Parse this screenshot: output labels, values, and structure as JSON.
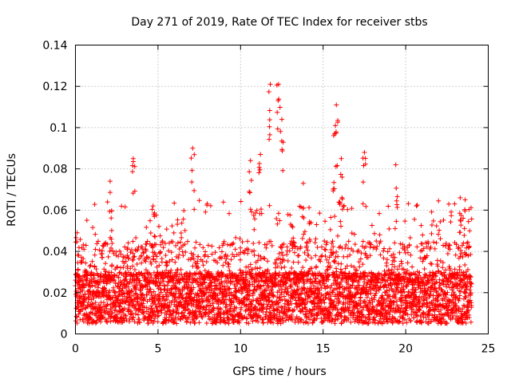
{
  "chart_data": {
    "type": "scatter",
    "title": "Day 271 of 2019, Rate Of TEC Index for receiver stbs",
    "xlabel": "GPS time / hours",
    "ylabel": "ROTI / TECUs",
    "xlim": [
      0,
      25
    ],
    "ylim": [
      0,
      0.14
    ],
    "xticks": [
      0,
      5,
      10,
      15,
      20,
      25
    ],
    "xtick_labels": [
      "0",
      "5",
      "10",
      "15",
      "20",
      "25"
    ],
    "yticks": [
      0,
      0.02,
      0.04,
      0.06,
      0.08,
      0.1,
      0.12,
      0.14
    ],
    "ytick_labels": [
      "0",
      "0.02",
      "0.04",
      "0.06",
      "0.08",
      "0.1",
      "0.12",
      "0.14"
    ],
    "grid": true,
    "marker": "plus",
    "color": "#ff0000",
    "x_data_range": [
      0,
      24
    ],
    "baseline_band": [
      0.005,
      0.03
    ],
    "notable_points": [
      {
        "x": 0.1,
        "y": 0.049
      },
      {
        "x": 2.1,
        "y": 0.074
      },
      {
        "x": 3.5,
        "y": 0.085
      },
      {
        "x": 4.7,
        "y": 0.062
      },
      {
        "x": 7.1,
        "y": 0.09
      },
      {
        "x": 10.6,
        "y": 0.084
      },
      {
        "x": 11.2,
        "y": 0.087
      },
      {
        "x": 11.8,
        "y": 0.121
      },
      {
        "x": 12.3,
        "y": 0.121
      },
      {
        "x": 12.5,
        "y": 0.104
      },
      {
        "x": 13.8,
        "y": 0.073
      },
      {
        "x": 15.8,
        "y": 0.111
      },
      {
        "x": 15.7,
        "y": 0.097
      },
      {
        "x": 16.1,
        "y": 0.085
      },
      {
        "x": 17.5,
        "y": 0.088
      },
      {
        "x": 19.4,
        "y": 0.082
      },
      {
        "x": 23.3,
        "y": 0.066
      },
      {
        "x": 23.6,
        "y": 0.065
      }
    ]
  }
}
